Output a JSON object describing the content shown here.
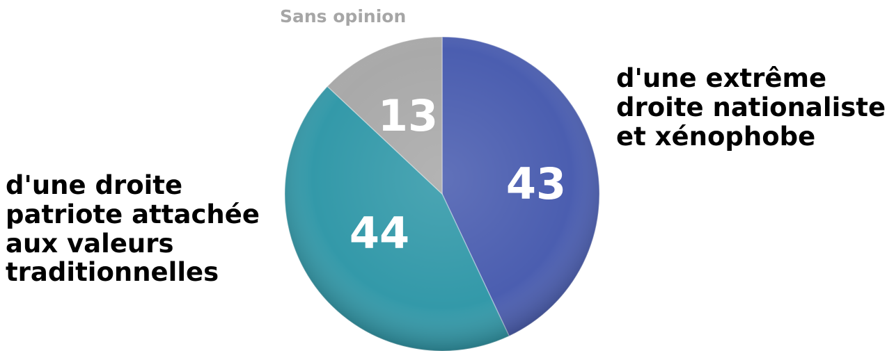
{
  "chart_data": {
    "type": "pie",
    "slices": [
      {
        "label": "d'une extrême\ndroite nationaliste\net xénophobe",
        "value": 43,
        "value_text": "43",
        "color": "#4b5eb0"
      },
      {
        "label": "d'une droite\npatriote attachée\naux valeurs\ntraditionnelles",
        "value": 44,
        "value_text": "44",
        "color": "#3399a9"
      },
      {
        "label": "Sans opinion",
        "value": 13,
        "value_text": "13",
        "color": "#a9a9a9"
      }
    ],
    "start_angle_deg": 0,
    "direction": "clockwise",
    "legend": "none"
  }
}
